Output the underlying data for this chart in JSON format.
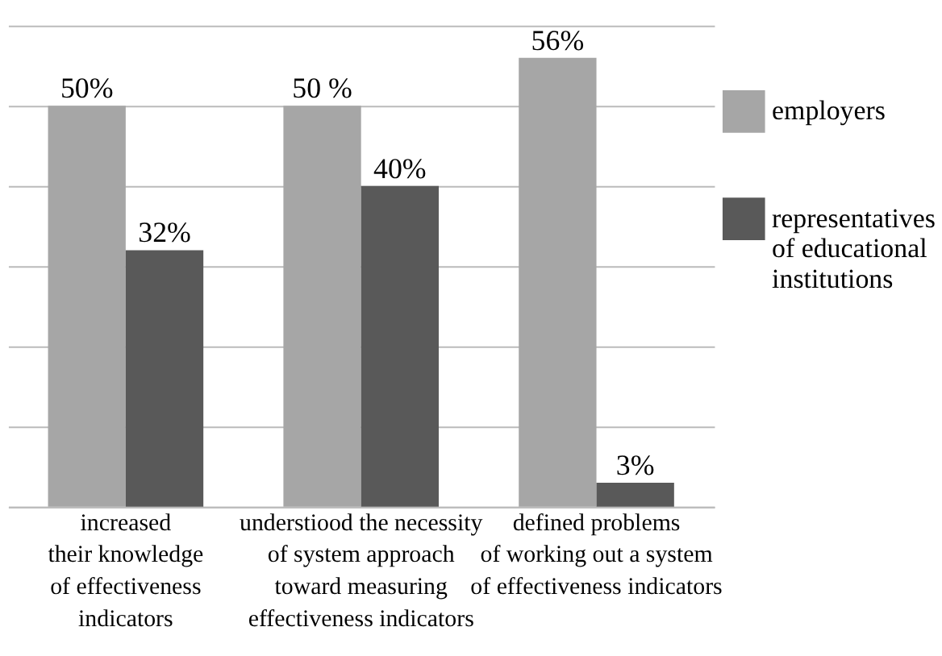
{
  "chart_data": {
    "type": "bar",
    "categories": [
      "increased\ntheir knowledge\nof effectiveness\nindicators",
      "understiood the necessity\nof system approach\ntoward measuring\neffectiveness indicators",
      "defined problems\nof working out a system\nof effectiveness indicators"
    ],
    "series": [
      {
        "name": "employers",
        "color": "#a6a6a6",
        "values": [
          50,
          50,
          56
        ],
        "value_labels": [
          "50%",
          "50 %",
          "56%"
        ]
      },
      {
        "name": "representatives\nof educational\ninstitutions",
        "color": "#595959",
        "values": [
          32,
          40,
          3
        ],
        "value_labels": [
          "32%",
          "40%",
          "3%"
        ]
      }
    ],
    "ylim": [
      0,
      60
    ],
    "yticks": [
      {
        "value": 0,
        "label": null
      },
      {
        "value": 10,
        "label": null
      },
      {
        "value": 20,
        "label": null
      },
      {
        "value": 30,
        "label": null
      },
      {
        "value": 40,
        "label": null
      },
      {
        "value": 50,
        "label": null
      },
      {
        "value": 60,
        "label": null
      }
    ],
    "tick_labels": "x",
    "grid": "y",
    "legend": "right"
  }
}
